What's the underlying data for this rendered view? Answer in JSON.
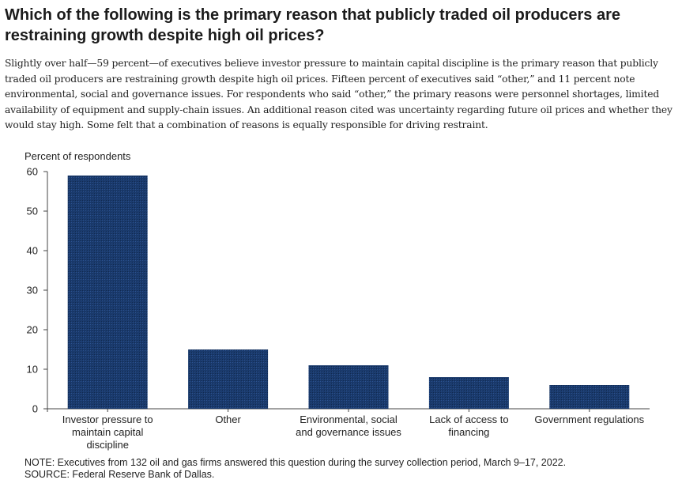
{
  "page": {
    "title": "Which of the following is the primary reason that publicly traded oil producers are restraining growth despite high oil prices?",
    "description": "Slightly over half—59 percent—of executives believe investor pressure to maintain capital discipline is the primary reason that publicly traded oil producers are restraining growth despite high oil prices. Fifteen percent of executives said “other,” and 11 percent note environmental, social and governance issues. For respondents who said “other,” the primary reasons were personnel shortages, limited availability of equipment and supply-chain issues. An additional reason cited was uncertainty regarding future oil prices and whether they would stay high. Some felt that a combination of reasons is equally responsible for driving restraint.",
    "note": "NOTE:  Executives from 132 oil and gas firms answered this question during the survey collection period, March 9–17, 2022.",
    "source": "SOURCE:  Federal Reserve Bank of Dallas."
  },
  "chart_data": {
    "type": "bar",
    "ylabel": "Percent of respondents",
    "ylim": [
      0,
      60
    ],
    "yticks": [
      0,
      10,
      20,
      30,
      40,
      50,
      60
    ],
    "categories": [
      [
        "Investor pressure to",
        "maintain capital",
        "discipline"
      ],
      [
        "Other"
      ],
      [
        "Environmental, social",
        "and governance issues"
      ],
      [
        "Lack of access to",
        "financing"
      ],
      [
        "Government regulations"
      ]
    ],
    "values": [
      59,
      15,
      11,
      8,
      6
    ],
    "bar_color": "#1a3a6c",
    "grid": false,
    "legend": "none"
  }
}
